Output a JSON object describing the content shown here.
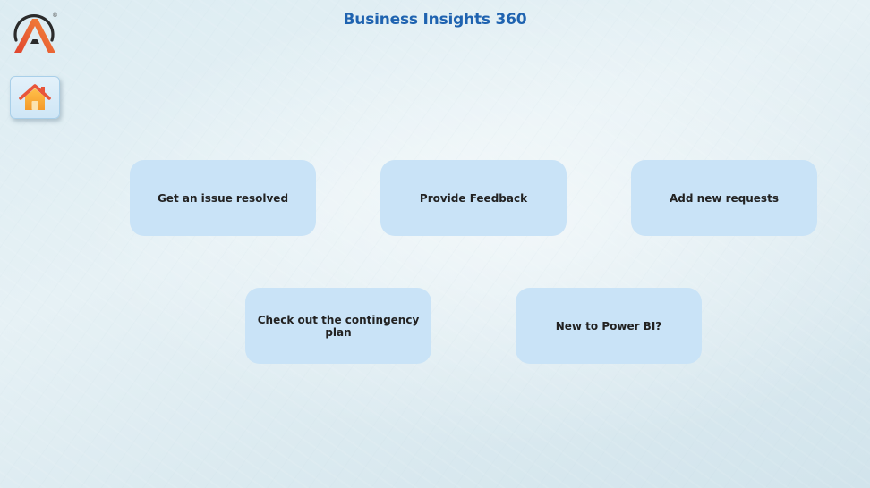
{
  "header": {
    "title": "Business Insights 360",
    "logo_icon": "brand-logo-a",
    "logo_mark": "®"
  },
  "home": {
    "icon": "home-icon"
  },
  "cards": [
    {
      "label": "Get an issue resolved"
    },
    {
      "label": "Provide Feedback"
    },
    {
      "label": "Add new requests"
    },
    {
      "label": "Check out the contingency plan"
    },
    {
      "label": "New to Power BI?"
    }
  ],
  "colors": {
    "title": "#1f63b0",
    "card_bg": "#c9e3f7",
    "card_text": "#222222",
    "home_roof": "#e8553a",
    "home_body": "#f7a234"
  }
}
